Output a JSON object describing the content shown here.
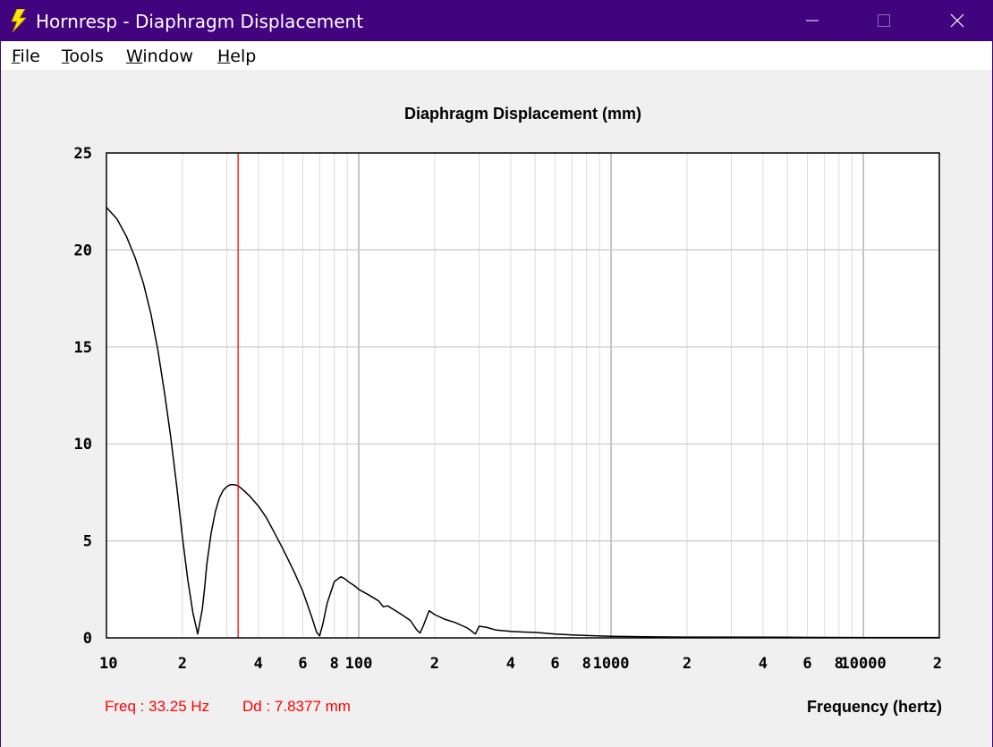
{
  "window": {
    "title": "Hornresp - Diaphragm Displacement",
    "icon": "lightning-bolt-icon",
    "title_bar_color": "#42037f"
  },
  "menu": {
    "items": [
      "File",
      "Tools",
      "Window",
      "Help"
    ]
  },
  "readout": {
    "freq": "Freq : 33.25 Hz",
    "dd": "Dd : 7.8377 mm",
    "color": "#ff0000"
  },
  "chart_data": {
    "type": "line",
    "title": "Diaphragm Displacement (mm)",
    "xlabel": "Frequency (hertz)",
    "ylabel": "",
    "xscale": "log",
    "xlim": [
      10,
      20000
    ],
    "ylim": [
      0,
      25
    ],
    "grid": true,
    "yticks": [
      {
        "value": 0,
        "label": "0"
      },
      {
        "value": 5,
        "label": "5"
      },
      {
        "value": 10,
        "label": "10"
      },
      {
        "value": 15,
        "label": "15"
      },
      {
        "value": 20,
        "label": "20"
      },
      {
        "value": 25,
        "label": "25"
      }
    ],
    "xticks": [
      {
        "value": 10,
        "label": "10"
      },
      {
        "value": 20,
        "label": "2"
      },
      {
        "value": 40,
        "label": "4"
      },
      {
        "value": 60,
        "label": "6"
      },
      {
        "value": 80,
        "label": "8"
      },
      {
        "value": 100,
        "label": "100"
      },
      {
        "value": 200,
        "label": "2"
      },
      {
        "value": 400,
        "label": "4"
      },
      {
        "value": 600,
        "label": "6"
      },
      {
        "value": 800,
        "label": "8"
      },
      {
        "value": 1000,
        "label": "1000"
      },
      {
        "value": 2000,
        "label": "2"
      },
      {
        "value": 4000,
        "label": "4"
      },
      {
        "value": 6000,
        "label": "6"
      },
      {
        "value": 8000,
        "label": "8"
      },
      {
        "value": 10000,
        "label": "10000"
      },
      {
        "value": 20000,
        "label": "2"
      }
    ],
    "cursor": {
      "x": 33.25,
      "color": "#ff0000"
    },
    "series": [
      {
        "color": "#000000",
        "x": [
          10,
          11,
          12,
          13,
          14,
          15,
          16,
          17,
          18,
          19,
          20,
          21,
          22,
          23,
          24,
          24.5,
          25,
          26,
          27,
          28,
          29,
          30,
          31,
          32,
          33.25,
          35,
          37,
          40,
          43,
          46,
          50,
          55,
          60,
          65,
          68,
          70,
          72,
          75,
          80,
          85,
          88,
          92,
          96,
          100,
          110,
          120,
          125,
          130,
          140,
          150,
          160,
          170,
          175,
          180,
          190,
          200,
          220,
          240,
          260,
          270,
          280,
          290,
          300,
          320,
          350,
          400,
          450,
          500,
          600,
          700,
          800,
          1000,
          1500,
          2000,
          5000,
          10000,
          20000
        ],
        "y": [
          22.2,
          21.6,
          20.7,
          19.6,
          18.3,
          16.7,
          14.8,
          12.6,
          10.3,
          7.8,
          5.2,
          3.0,
          1.3,
          0.2,
          1.5,
          2.6,
          3.8,
          5.4,
          6.5,
          7.2,
          7.6,
          7.8,
          7.9,
          7.9,
          7.84,
          7.6,
          7.3,
          6.8,
          6.2,
          5.5,
          4.6,
          3.5,
          2.4,
          1.1,
          0.3,
          0.1,
          0.7,
          1.8,
          2.9,
          3.15,
          3.05,
          2.85,
          2.7,
          2.5,
          2.2,
          1.9,
          1.6,
          1.65,
          1.4,
          1.15,
          0.9,
          0.4,
          0.25,
          0.6,
          1.4,
          1.2,
          0.95,
          0.8,
          0.6,
          0.5,
          0.35,
          0.2,
          0.6,
          0.55,
          0.4,
          0.33,
          0.3,
          0.28,
          0.2,
          0.15,
          0.12,
          0.08,
          0.05,
          0.04,
          0.03,
          0.02,
          0.02
        ]
      }
    ]
  }
}
